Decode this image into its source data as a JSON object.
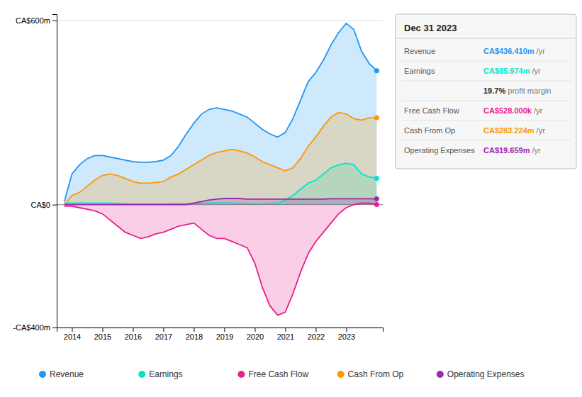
{
  "chart_data": {
    "type": "area",
    "xlim": [
      2013.5,
      2024.2
    ],
    "xticks": [
      2014,
      2015,
      2016,
      2017,
      2018,
      2019,
      2020,
      2021,
      2022,
      2023
    ],
    "ylim": [
      -400,
      620
    ],
    "yticks": [
      {
        "value": -400,
        "label": "-CA$400m"
      },
      {
        "value": 0,
        "label": "CA$0"
      },
      {
        "value": 600,
        "label": "CA$600m"
      }
    ],
    "grid": true,
    "legend": "bottom",
    "x": [
      2013.75,
      2014.0,
      2014.25,
      2014.5,
      2014.75,
      2015.0,
      2015.25,
      2015.5,
      2015.75,
      2016.0,
      2016.25,
      2016.5,
      2016.75,
      2017.0,
      2017.25,
      2017.5,
      2017.75,
      2018.0,
      2018.25,
      2018.5,
      2018.75,
      2019.0,
      2019.25,
      2019.5,
      2019.75,
      2020.0,
      2020.25,
      2020.5,
      2020.75,
      2021.0,
      2021.25,
      2021.5,
      2021.75,
      2022.0,
      2022.25,
      2022.5,
      2022.75,
      2023.0,
      2023.25,
      2023.5,
      2023.75,
      2024.0
    ],
    "series": [
      {
        "name": "Revenue",
        "color": "#2196f3",
        "values": [
          10,
          100,
          130,
          150,
          160,
          160,
          155,
          150,
          145,
          140,
          138,
          138,
          140,
          145,
          160,
          190,
          230,
          265,
          295,
          310,
          315,
          310,
          305,
          295,
          285,
          265,
          245,
          230,
          220,
          235,
          280,
          340,
          400,
          430,
          470,
          520,
          560,
          590,
          570,
          500,
          460,
          436
        ]
      },
      {
        "name": "Earnings",
        "color": "#00e5cc",
        "values": [
          5,
          5,
          5,
          5,
          5,
          5,
          5,
          4,
          3,
          2,
          2,
          2,
          2,
          2,
          3,
          3,
          3,
          4,
          4,
          5,
          5,
          5,
          5,
          4,
          4,
          3,
          3,
          4,
          5,
          15,
          30,
          50,
          70,
          80,
          100,
          120,
          130,
          135,
          130,
          100,
          90,
          86
        ]
      },
      {
        "name": "Free Cash Flow",
        "color": "#e91e8c",
        "values": [
          -5,
          -5,
          -10,
          -15,
          -20,
          -30,
          -50,
          -70,
          -90,
          -100,
          -110,
          -105,
          -95,
          -90,
          -80,
          -70,
          -65,
          -60,
          -80,
          -100,
          -110,
          -110,
          -120,
          -130,
          -140,
          -190,
          -270,
          -330,
          -360,
          -350,
          -290,
          -220,
          -160,
          -120,
          -90,
          -60,
          -30,
          -10,
          0,
          5,
          5,
          0.5
        ]
      },
      {
        "name": "Cash From Op",
        "color": "#ff9800",
        "values": [
          0,
          30,
          40,
          60,
          80,
          95,
          100,
          95,
          85,
          75,
          70,
          70,
          72,
          75,
          90,
          100,
          115,
          130,
          145,
          160,
          170,
          175,
          180,
          175,
          168,
          155,
          140,
          130,
          120,
          110,
          120,
          150,
          190,
          220,
          255,
          285,
          300,
          295,
          280,
          275,
          283,
          283
        ]
      },
      {
        "name": "Operating Expenses",
        "color": "#9c27b0",
        "values": [
          0,
          0,
          0,
          0,
          0,
          0,
          0,
          0,
          0,
          0,
          0,
          0,
          0,
          0,
          0,
          0,
          0,
          5,
          10,
          15,
          18,
          20,
          20,
          20,
          18,
          18,
          18,
          18,
          18,
          18,
          18,
          18,
          18,
          18,
          18,
          19,
          19,
          19,
          19,
          19,
          19,
          19
        ]
      }
    ],
    "annotations": {
      "title": "Dec 31 2023",
      "rows": [
        {
          "label": "Revenue",
          "value": "CA$436.410m /yr",
          "color": "#2196f3"
        },
        {
          "label": "Earnings",
          "value": "CA$85.974m /yr",
          "color": "#00e5cc"
        },
        {
          "value": "19.7% profit margin",
          "color": "#ffffff"
        },
        {
          "label": "Free Cash Flow",
          "value": "CA$528.000k /yr",
          "color": "#e91e8c"
        },
        {
          "label": "Cash From Op",
          "value": "CA$283.224m /yr",
          "color": "#ff9800"
        },
        {
          "label": "Operating Expenses",
          "value": "CA$19.659m /yr",
          "color": "#9c27b0"
        }
      ]
    }
  }
}
